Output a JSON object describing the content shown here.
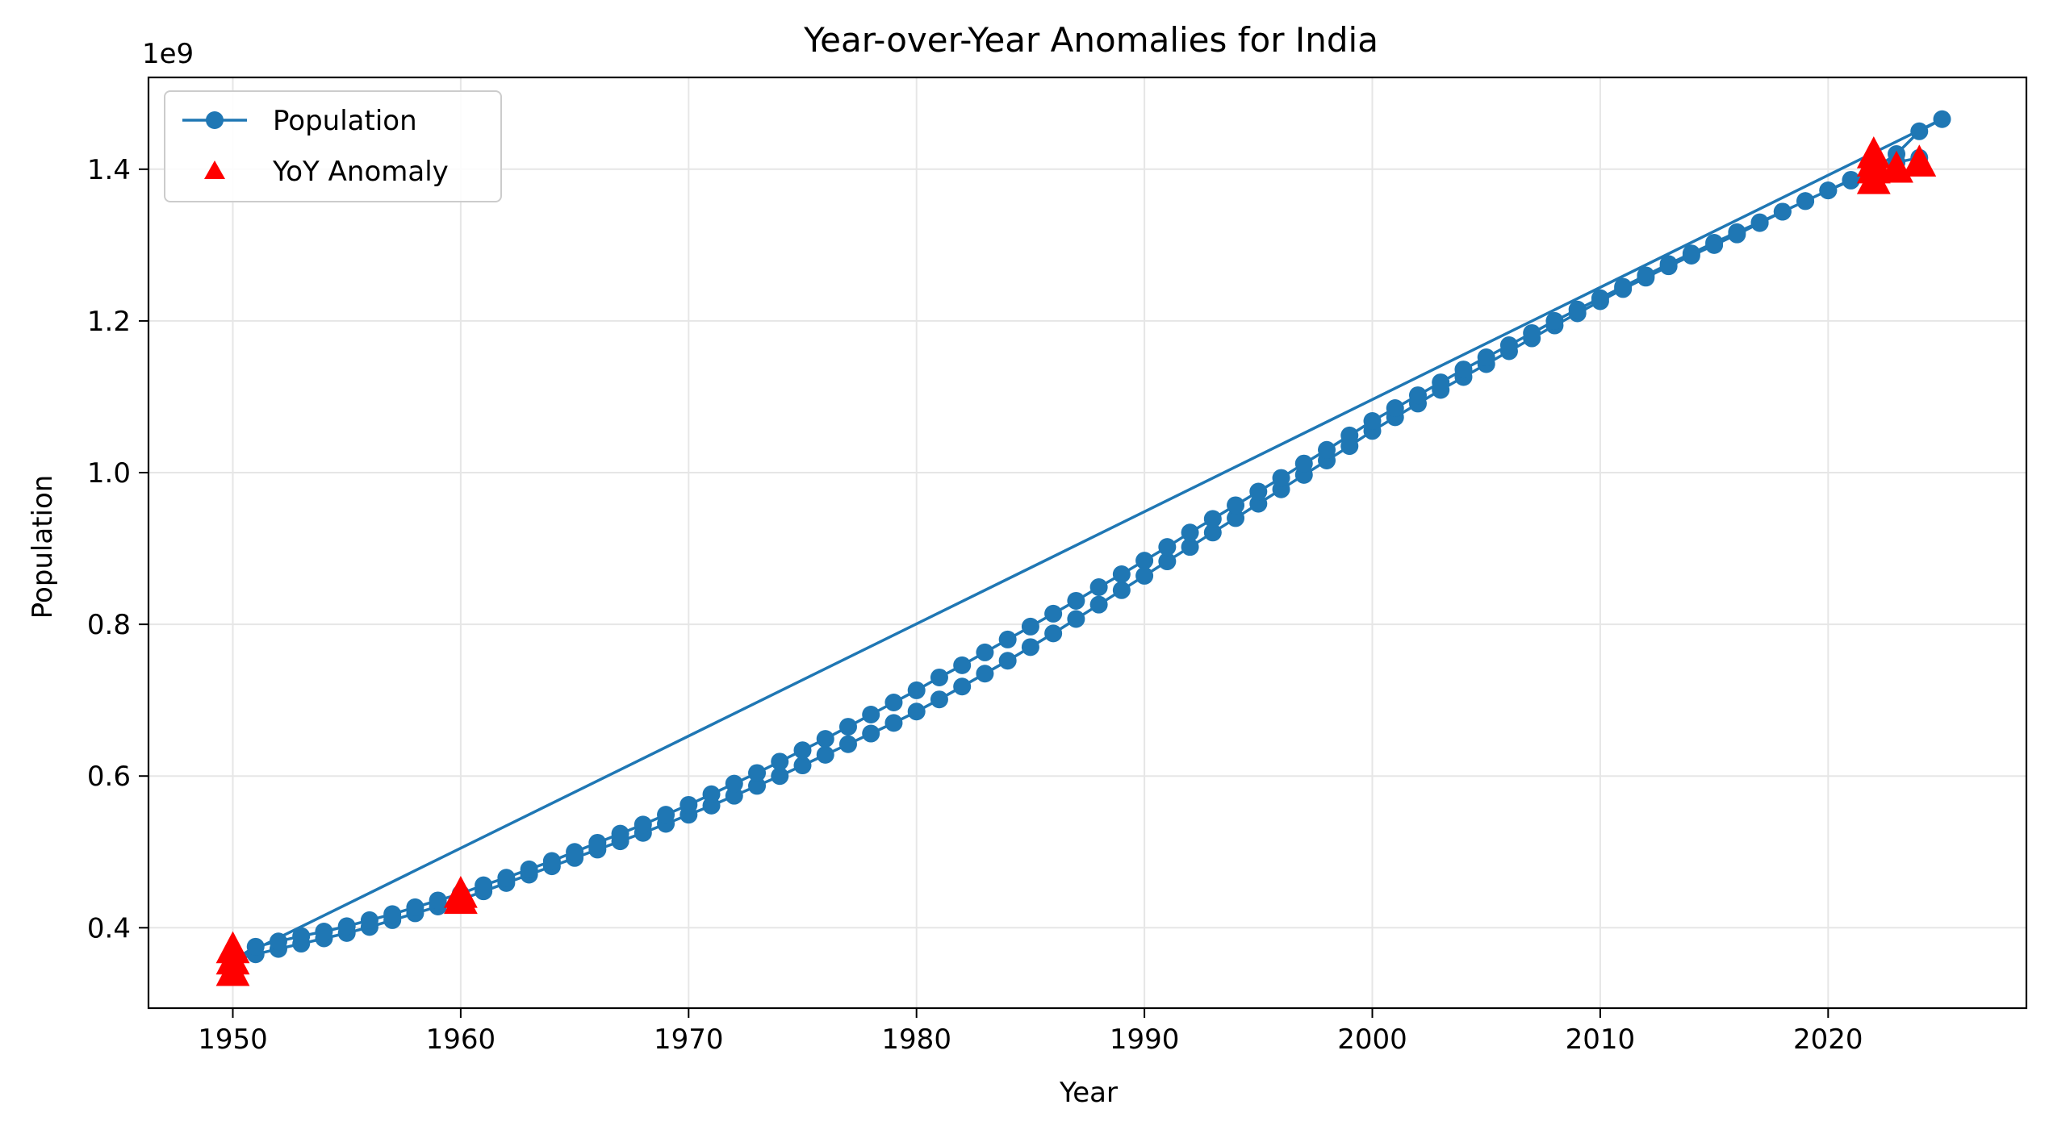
{
  "chart_data": {
    "type": "line",
    "title": "Year-over-Year Anomalies for India",
    "xlabel": "Year",
    "ylabel": "Population",
    "y_offset_label": "1e9",
    "xlim": [
      1946.3,
      2028.7
    ],
    "ylim": [
      0.294,
      1.521
    ],
    "x_ticks": [
      1950,
      1960,
      1970,
      1980,
      1990,
      2000,
      2010,
      2020
    ],
    "x_tick_labels": [
      "1950",
      "1960",
      "1970",
      "1980",
      "1990",
      "2000",
      "2010",
      "2020"
    ],
    "y_ticks": [
      0.4,
      0.6,
      0.8,
      1.0,
      1.2,
      1.4
    ],
    "y_tick_labels": [
      "0.4",
      "0.6",
      "0.8",
      "1.0",
      "1.2",
      "1.4"
    ],
    "grid": true,
    "legend_position": "top-left",
    "legend": [
      {
        "label": "Population",
        "marker": "circle-line"
      },
      {
        "label": "YoY Anomaly",
        "marker": "triangle"
      }
    ],
    "colors": {
      "population": "#1f77b4",
      "anomaly": "#ff0000",
      "grid": "#e6e6e6"
    },
    "series": [
      {
        "name": "Population",
        "style": "line-with-circle-markers",
        "segments": [
          {
            "x": [
              1950,
              1951,
              1952,
              1953,
              1954,
              1955,
              1956,
              1957,
              1958,
              1959,
              1960,
              1961,
              1962,
              1963,
              1964,
              1965,
              1966,
              1967,
              1968,
              1969,
              1970,
              1971,
              1972,
              1973,
              1974,
              1975,
              1976,
              1977,
              1978,
              1979,
              1980,
              1981,
              1982,
              1983,
              1984,
              1985,
              1986,
              1987,
              1988,
              1989,
              1990,
              1991,
              1992,
              1993,
              1994,
              1995,
              1996,
              1997,
              1998,
              1999,
              2000,
              2001,
              2002,
              2003,
              2004,
              2005,
              2006,
              2007,
              2008,
              2009,
              2010,
              2011,
              2012,
              2013,
              2014,
              2015,
              2016,
              2017,
              2018,
              2019,
              2020,
              2021,
              2022,
              2023,
              2024,
              2025
            ],
            "y": [
              0.357,
              0.365,
              0.372,
              0.379,
              0.386,
              0.393,
              0.401,
              0.41,
              0.419,
              0.428,
              0.437,
              0.448,
              0.459,
              0.47,
              0.481,
              0.492,
              0.503,
              0.514,
              0.525,
              0.537,
              0.549,
              0.561,
              0.574,
              0.587,
              0.6,
              0.614,
              0.628,
              0.642,
              0.656,
              0.67,
              0.685,
              0.701,
              0.718,
              0.735,
              0.752,
              0.77,
              0.788,
              0.807,
              0.826,
              0.845,
              0.864,
              0.883,
              0.902,
              0.921,
              0.94,
              0.959,
              0.978,
              0.997,
              1.016,
              1.035,
              1.055,
              1.073,
              1.091,
              1.109,
              1.126,
              1.143,
              1.16,
              1.177,
              1.194,
              1.21,
              1.226,
              1.242,
              1.257,
              1.272,
              1.286,
              1.3,
              1.314,
              1.329,
              1.344,
              1.358,
              1.372,
              1.385,
              1.4,
              1.42,
              1.45,
              1.466
            ]
          },
          {
            "x": [
              1950,
              1951,
              1952,
              1953,
              1954,
              1955,
              1956,
              1957,
              1958,
              1959,
              1960,
              1961,
              1962,
              1963,
              1964,
              1965,
              1966,
              1967,
              1968,
              1969,
              1970,
              1971,
              1972,
              1973,
              1974,
              1975,
              1976,
              1977,
              1978,
              1979,
              1980,
              1981,
              1982,
              1983,
              1984,
              1985,
              1986,
              1987,
              1988,
              1989,
              1990,
              1991,
              1992,
              1993,
              1994,
              1995,
              1996,
              1997,
              1998,
              1999,
              2000,
              2001,
              2002,
              2003,
              2004,
              2005,
              2006,
              2007,
              2008,
              2009,
              2010,
              2011,
              2012,
              2013,
              2014,
              2015,
              2016,
              2017,
              2018,
              2019,
              2020,
              2021,
              2022,
              2023,
              2024
            ],
            "y": [
              0.357,
              0.375,
              0.382,
              0.389,
              0.395,
              0.402,
              0.41,
              0.418,
              0.427,
              0.436,
              0.445,
              0.456,
              0.466,
              0.477,
              0.488,
              0.5,
              0.512,
              0.524,
              0.536,
              0.549,
              0.562,
              0.576,
              0.59,
              0.604,
              0.619,
              0.634,
              0.649,
              0.665,
              0.681,
              0.697,
              0.713,
              0.73,
              0.746,
              0.763,
              0.78,
              0.797,
              0.814,
              0.831,
              0.849,
              0.866,
              0.884,
              0.902,
              0.921,
              0.939,
              0.957,
              0.975,
              0.993,
              1.012,
              1.03,
              1.049,
              1.068,
              1.085,
              1.102,
              1.119,
              1.136,
              1.152,
              1.168,
              1.184,
              1.2,
              1.215,
              1.23,
              1.245,
              1.26,
              1.275,
              1.289,
              1.303,
              1.317,
              1.33,
              1.344,
              1.358,
              1.372,
              1.386,
              1.401,
              1.409,
              1.415
            ]
          }
        ]
      },
      {
        "name": "YoY Anomaly",
        "style": "triangle-markers",
        "x": [
          1950,
          1950,
          1950,
          1960,
          1960,
          2022,
          2022,
          2022,
          2022,
          2023,
          2024
        ],
        "y": [
          0.342,
          0.357,
          0.372,
          0.437,
          0.445,
          1.42,
          1.4,
          1.386,
          1.409,
          1.401,
          1.409
        ]
      }
    ]
  }
}
